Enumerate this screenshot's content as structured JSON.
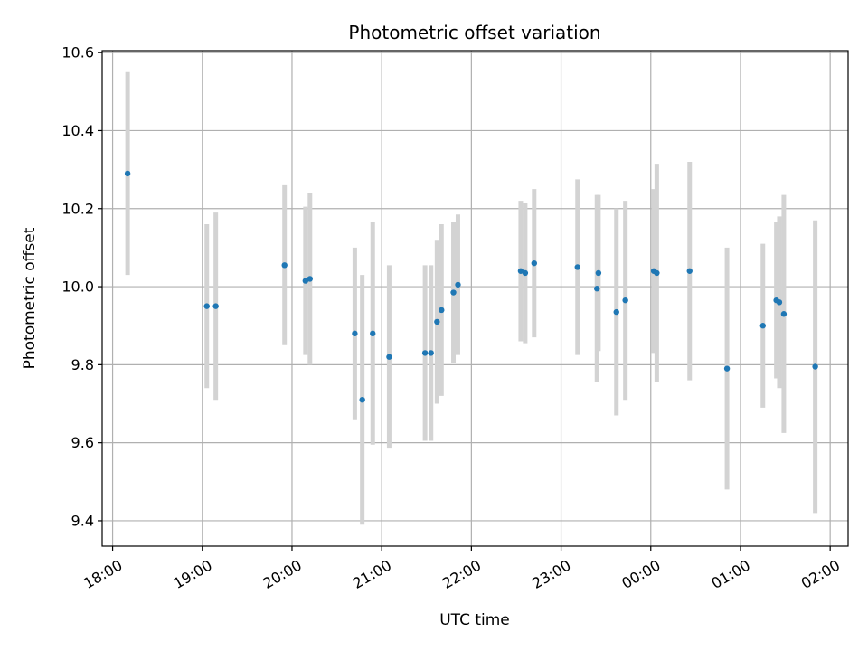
{
  "chart_data": {
    "type": "scatter",
    "title": "Photometric offset variation",
    "xlabel": "UTC time",
    "ylabel": "Photometric offset",
    "x_axis_type": "time",
    "xlim": [
      "17:53",
      "02:12"
    ],
    "ylim": [
      9.335,
      10.605
    ],
    "grid": true,
    "x_ticks": [
      "18:00",
      "19:00",
      "20:00",
      "21:00",
      "22:00",
      "23:00",
      "00:00",
      "01:00",
      "02:00"
    ],
    "y_ticks": [
      "9.4",
      "9.6",
      "9.8",
      "10.0",
      "10.2",
      "10.4",
      "10.6"
    ],
    "colors": {
      "point": "#1f77b4",
      "errorbar": "#d3d3d3",
      "grid": "#b0b0b0"
    },
    "points": [
      {
        "x": "18:10",
        "y": 10.29,
        "err": 0.26
      },
      {
        "x": "19:03",
        "y": 9.95,
        "err": 0.21
      },
      {
        "x": "19:09",
        "y": 9.95,
        "err": 0.24
      },
      {
        "x": "19:55",
        "y": 10.055,
        "err": 0.205
      },
      {
        "x": "20:09",
        "y": 10.015,
        "err": 0.19
      },
      {
        "x": "20:12",
        "y": 10.02,
        "err": 0.22
      },
      {
        "x": "20:42",
        "y": 9.88,
        "err": 0.22
      },
      {
        "x": "20:47",
        "y": 9.71,
        "err": 0.32
      },
      {
        "x": "20:54",
        "y": 9.88,
        "err": 0.285
      },
      {
        "x": "21:05",
        "y": 9.82,
        "err": 0.235
      },
      {
        "x": "21:29",
        "y": 9.83,
        "err": 0.225
      },
      {
        "x": "21:33",
        "y": 9.83,
        "err": 0.225
      },
      {
        "x": "21:37",
        "y": 9.91,
        "err": 0.21
      },
      {
        "x": "21:40",
        "y": 9.94,
        "err": 0.22
      },
      {
        "x": "21:48",
        "y": 9.985,
        "err": 0.18
      },
      {
        "x": "21:51",
        "y": 10.005,
        "err": 0.18
      },
      {
        "x": "22:33",
        "y": 10.04,
        "err": 0.18
      },
      {
        "x": "22:36",
        "y": 10.035,
        "err": 0.18
      },
      {
        "x": "22:42",
        "y": 10.06,
        "err": 0.19
      },
      {
        "x": "23:11",
        "y": 10.05,
        "err": 0.225
      },
      {
        "x": "23:24",
        "y": 9.995,
        "err": 0.24
      },
      {
        "x": "23:25",
        "y": 10.035,
        "err": 0.2
      },
      {
        "x": "23:37",
        "y": 9.935,
        "err": 0.265
      },
      {
        "x": "23:43",
        "y": 9.965,
        "err": 0.255
      },
      {
        "x": "00:02",
        "y": 10.04,
        "err": 0.21
      },
      {
        "x": "00:04",
        "y": 10.035,
        "err": 0.28
      },
      {
        "x": "00:26",
        "y": 10.04,
        "err": 0.28
      },
      {
        "x": "00:51",
        "y": 9.79,
        "err": 0.31
      },
      {
        "x": "01:15",
        "y": 9.9,
        "err": 0.21
      },
      {
        "x": "01:24",
        "y": 9.965,
        "err": 0.2
      },
      {
        "x": "01:26",
        "y": 9.96,
        "err": 0.22
      },
      {
        "x": "01:29",
        "y": 9.93,
        "err": 0.305
      },
      {
        "x": "01:50",
        "y": 9.795,
        "err": 0.375
      }
    ]
  }
}
